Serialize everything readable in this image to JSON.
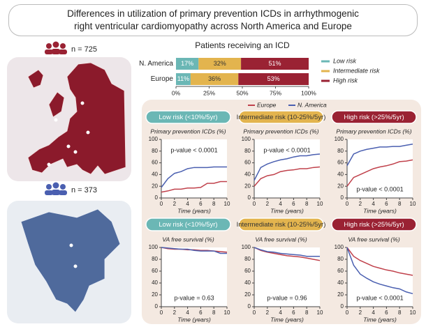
{
  "title": "Differences in utilization of primary prevention ICDs in arrhythmogenic right ventricular cardiomyopathy across North America and Europe",
  "europe": {
    "count": "n = 725"
  },
  "north_america": {
    "count": "n = 373"
  },
  "chart_data": [
    {
      "type": "bar",
      "orientation": "horizontal",
      "stacked": true,
      "title": "Patients receiving an ICD",
      "categories": [
        "N. America",
        "Europe"
      ],
      "series": [
        {
          "name": "Low risk",
          "color": "#6bb7b5",
          "values": [
            17,
            11
          ],
          "value_labels": [
            "17%",
            "11%"
          ]
        },
        {
          "name": "Intermediate risk",
          "color": "#e3b44e",
          "values": [
            32,
            36
          ],
          "value_labels": [
            "32%",
            "36%"
          ]
        },
        {
          "name": "High risk",
          "color": "#9a2233",
          "values": [
            51,
            53
          ],
          "value_labels": [
            "51%",
            "53%"
          ]
        }
      ],
      "xlim": [
        0,
        100
      ],
      "xticks": [
        {
          "value": 0,
          "label": "0%"
        },
        {
          "value": 25,
          "label": "25%"
        },
        {
          "value": 50,
          "label": "50%"
        },
        {
          "value": 75,
          "label": "75%"
        },
        {
          "value": 100,
          "label": "100%"
        }
      ]
    },
    {
      "type": "line",
      "title": "Low risk (<10%/5yr)",
      "ylabel": "Primary prevention ICDs (%)",
      "xlabel": "Time (years)",
      "annotation": "p-value < 0.0001",
      "x": [
        0,
        1,
        2,
        3,
        4,
        5,
        6,
        7,
        8,
        9,
        10
      ],
      "series": [
        {
          "name": "Europe",
          "color": "#c0414b",
          "values": [
            10,
            12,
            15,
            15,
            17,
            17,
            18,
            25,
            25,
            28,
            28
          ]
        },
        {
          "name": "N. America",
          "color": "#4a5fb0",
          "values": [
            18,
            33,
            42,
            45,
            50,
            52,
            52,
            52,
            53,
            53,
            53
          ]
        }
      ],
      "xlim": [
        0,
        10
      ],
      "ylim": [
        0,
        100
      ],
      "xticks": [
        0,
        2,
        4,
        6,
        8,
        10
      ],
      "yticks": [
        0,
        20,
        40,
        60,
        80,
        100
      ]
    },
    {
      "type": "line",
      "title": "Intermediate risk (10-25%/5yr)",
      "ylabel": "Primary prevention ICDs (%)",
      "xlabel": "Time (years)",
      "annotation": "p-value < 0.0001",
      "x": [
        0,
        1,
        2,
        3,
        4,
        5,
        6,
        7,
        8,
        9,
        10
      ],
      "series": [
        {
          "name": "Europe",
          "color": "#c0414b",
          "values": [
            20,
            33,
            38,
            40,
            45,
            47,
            48,
            50,
            50,
            52,
            53
          ]
        },
        {
          "name": "N. America",
          "color": "#4a5fb0",
          "values": [
            30,
            52,
            58,
            62,
            65,
            67,
            70,
            72,
            72,
            74,
            75
          ]
        }
      ],
      "xlim": [
        0,
        10
      ],
      "ylim": [
        0,
        100
      ],
      "xticks": [
        0,
        2,
        4,
        6,
        8,
        10
      ],
      "yticks": [
        0,
        20,
        40,
        60,
        80,
        100
      ]
    },
    {
      "type": "line",
      "title": "High risk (>25%/5yr)",
      "ylabel": "Primary prevention ICDs (%)",
      "xlabel": "Time (years)",
      "annotation": "p-value < 0.0001",
      "x": [
        0,
        1,
        2,
        3,
        4,
        5,
        6,
        7,
        8,
        9,
        10
      ],
      "series": [
        {
          "name": "Europe",
          "color": "#c0414b",
          "values": [
            20,
            35,
            40,
            45,
            50,
            53,
            55,
            58,
            62,
            63,
            65
          ]
        },
        {
          "name": "N. America",
          "color": "#4a5fb0",
          "values": [
            55,
            75,
            80,
            83,
            85,
            87,
            87,
            88,
            88,
            90,
            92
          ]
        }
      ],
      "xlim": [
        0,
        10
      ],
      "ylim": [
        0,
        100
      ],
      "xticks": [
        0,
        2,
        4,
        6,
        8,
        10
      ],
      "yticks": [
        0,
        20,
        40,
        60,
        80,
        100
      ]
    },
    {
      "type": "line",
      "title": "Low risk (<10%/5yr)",
      "ylabel": "VA free survival (%)",
      "xlabel": "Time (years)",
      "annotation": "p-value = 0.63",
      "x": [
        0,
        1,
        2,
        3,
        4,
        5,
        6,
        7,
        8,
        9,
        10
      ],
      "series": [
        {
          "name": "Europe",
          "color": "#c0414b",
          "values": [
            100,
            98,
            97,
            97,
            96,
            96,
            95,
            95,
            94,
            93,
            92
          ]
        },
        {
          "name": "N. America",
          "color": "#4a5fb0",
          "values": [
            100,
            99,
            98,
            97,
            97,
            95,
            94,
            94,
            94,
            90,
            90
          ]
        }
      ],
      "xlim": [
        0,
        10
      ],
      "ylim": [
        0,
        100
      ],
      "xticks": [
        0,
        2,
        4,
        6,
        8,
        10
      ],
      "yticks": [
        0,
        20,
        40,
        60,
        80,
        100
      ]
    },
    {
      "type": "line",
      "title": "Intermediate risk (10-25%/5yr)",
      "ylabel": "VA free survival (%)",
      "xlabel": "Time (years)",
      "annotation": "p-value = 0.96",
      "x": [
        0,
        1,
        2,
        3,
        4,
        5,
        6,
        7,
        8,
        9,
        10
      ],
      "series": [
        {
          "name": "Europe",
          "color": "#c0414b",
          "values": [
            100,
            95,
            92,
            90,
            88,
            86,
            85,
            84,
            82,
            80,
            78
          ]
        },
        {
          "name": "N. America",
          "color": "#4a5fb0",
          "values": [
            100,
            96,
            93,
            92,
            90,
            89,
            88,
            87,
            85,
            85,
            85
          ]
        }
      ],
      "xlim": [
        0,
        10
      ],
      "ylim": [
        0,
        100
      ],
      "xticks": [
        0,
        2,
        4,
        6,
        8,
        10
      ],
      "yticks": [
        0,
        20,
        40,
        60,
        80,
        100
      ]
    },
    {
      "type": "line",
      "title": "High risk (>25%/5yr)",
      "ylabel": "VA free survival (%)",
      "xlabel": "Time (years)",
      "annotation": "p-value < 0.0001",
      "x": [
        0,
        1,
        2,
        3,
        4,
        5,
        6,
        7,
        8,
        9,
        10
      ],
      "series": [
        {
          "name": "Europe",
          "color": "#c0414b",
          "values": [
            100,
            85,
            78,
            73,
            68,
            65,
            62,
            60,
            57,
            55,
            53
          ]
        },
        {
          "name": "N. America",
          "color": "#4a5fb0",
          "values": [
            100,
            70,
            55,
            48,
            42,
            38,
            35,
            32,
            30,
            25,
            22
          ]
        }
      ],
      "xlim": [
        0,
        10
      ],
      "ylim": [
        0,
        100
      ],
      "xticks": [
        0,
        2,
        4,
        6,
        8,
        10
      ],
      "yticks": [
        0,
        20,
        40,
        60,
        80,
        100
      ]
    }
  ]
}
